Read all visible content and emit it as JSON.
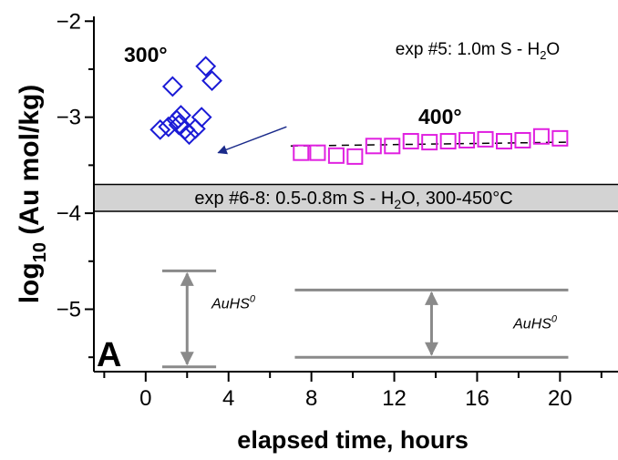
{
  "chart_data": {
    "type": "scatter",
    "xlabel": "elapsed time, hours",
    "ylabel": "log10 (Au mol/kg)",
    "xlim": [
      -2.5,
      22.8
    ],
    "ylim": [
      -5.65,
      -1.95
    ],
    "x_ticks": [
      0,
      4,
      8,
      12,
      16,
      20
    ],
    "y_ticks": [
      -2,
      -3,
      -4,
      -5
    ],
    "panel_letter": "A",
    "series": [
      {
        "label": "300°",
        "marker": "diamond",
        "color": "#1a1ad6",
        "points": [
          [
            0.7,
            -3.13
          ],
          [
            1.1,
            -3.1
          ],
          [
            1.3,
            -2.68
          ],
          [
            1.5,
            -3.03
          ],
          [
            1.6,
            -3.08
          ],
          [
            1.7,
            -2.98
          ],
          [
            1.9,
            -3.13
          ],
          [
            2.1,
            -3.18
          ],
          [
            2.4,
            -3.12
          ],
          [
            2.7,
            -3.0
          ],
          [
            2.9,
            -2.47
          ],
          [
            3.2,
            -2.62
          ]
        ]
      },
      {
        "label": "400°",
        "marker": "square",
        "color": "#e020e0",
        "points": [
          [
            7.5,
            -3.37
          ],
          [
            8.3,
            -3.37
          ],
          [
            9.2,
            -3.4
          ],
          [
            10.1,
            -3.41
          ],
          [
            11.0,
            -3.3
          ],
          [
            11.9,
            -3.3
          ],
          [
            12.8,
            -3.25
          ],
          [
            13.7,
            -3.26
          ],
          [
            14.6,
            -3.25
          ],
          [
            15.5,
            -3.24
          ],
          [
            16.4,
            -3.23
          ],
          [
            17.3,
            -3.25
          ],
          [
            18.2,
            -3.24
          ],
          [
            19.1,
            -3.2
          ],
          [
            20.0,
            -3.22
          ]
        ]
      }
    ],
    "dashed_line": {
      "x": [
        7.0,
        20.4
      ],
      "y": [
        -3.3,
        -3.26
      ]
    },
    "arrow": {
      "from": [
        6.8,
        -3.1
      ],
      "to": [
        3.5,
        -3.37
      ]
    },
    "exp5_label_parts": [
      "exp #5: 1.0m S - H",
      "2",
      "O"
    ],
    "band": {
      "y_range": [
        -3.7,
        -3.98
      ],
      "label_parts": [
        "exp #6-8: 0.5-0.8m S - H",
        "2",
        "O, 300-450°C"
      ]
    },
    "ranges": [
      {
        "x_from": 0.8,
        "x_to": 3.4,
        "x_arrow": 2.0,
        "y_top": -4.6,
        "y_bottom": -5.6,
        "label_main": "AuHS",
        "label_sup": "0"
      },
      {
        "x_from": 7.2,
        "x_to": 20.4,
        "x_arrow": 13.8,
        "y_top": -4.8,
        "y_bottom": -5.5,
        "label_main": "AuHS",
        "label_sup": "0"
      }
    ]
  }
}
